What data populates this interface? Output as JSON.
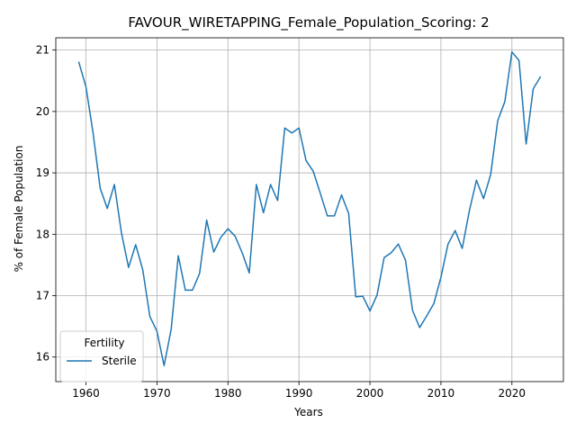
{
  "chart_data": {
    "type": "line",
    "title": "FAVOUR_WIRETAPPING_Female_Population_Scoring: 2",
    "xlabel": "Years",
    "ylabel": "% of Female Population",
    "xlim": [
      1955.75,
      2027.25
    ],
    "ylim": [
      15.6,
      21.2
    ],
    "xticks": [
      1960,
      1970,
      1980,
      1990,
      2000,
      2010,
      2020
    ],
    "yticks": [
      16,
      17,
      18,
      19,
      20,
      21
    ],
    "grid": true,
    "legend": {
      "title": "Fertility",
      "placement": "lower-left"
    },
    "series": [
      {
        "name": "Sterile",
        "color": "#1f77b4",
        "x": [
          1959,
          1960,
          1961,
          1962,
          1963,
          1964,
          1965,
          1966,
          1967,
          1968,
          1969,
          1970,
          1971,
          1972,
          1973,
          1974,
          1975,
          1976,
          1977,
          1978,
          1979,
          1980,
          1981,
          1982,
          1983,
          1984,
          1985,
          1986,
          1987,
          1988,
          1989,
          1990,
          1991,
          1992,
          1993,
          1994,
          1995,
          1996,
          1997,
          1998,
          1999,
          2000,
          2001,
          2002,
          2003,
          2004,
          2005,
          2006,
          2007,
          2008,
          2009,
          2010,
          2011,
          2012,
          2013,
          2014,
          2015,
          2016,
          2017,
          2018,
          2019,
          2020,
          2021,
          2022,
          2023,
          2024
        ],
        "values": [
          20.8,
          20.4,
          19.65,
          18.75,
          18.42,
          18.81,
          18.02,
          17.46,
          17.83,
          17.42,
          16.66,
          16.42,
          15.86,
          16.45,
          17.65,
          17.09,
          17.09,
          17.36,
          18.23,
          17.71,
          17.95,
          18.09,
          17.97,
          17.7,
          17.37,
          18.81,
          18.35,
          18.81,
          18.55,
          19.73,
          19.65,
          19.73,
          19.2,
          19.03,
          18.67,
          18.3,
          18.3,
          18.64,
          18.34,
          16.98,
          16.99,
          16.75,
          17.01,
          17.62,
          17.7,
          17.84,
          17.58,
          16.76,
          16.48,
          16.67,
          16.87,
          17.3,
          17.84,
          18.06,
          17.77,
          18.38,
          18.88,
          18.58,
          18.97,
          19.85,
          20.16,
          20.97,
          20.83,
          19.47,
          20.37,
          20.56
        ]
      }
    ]
  }
}
